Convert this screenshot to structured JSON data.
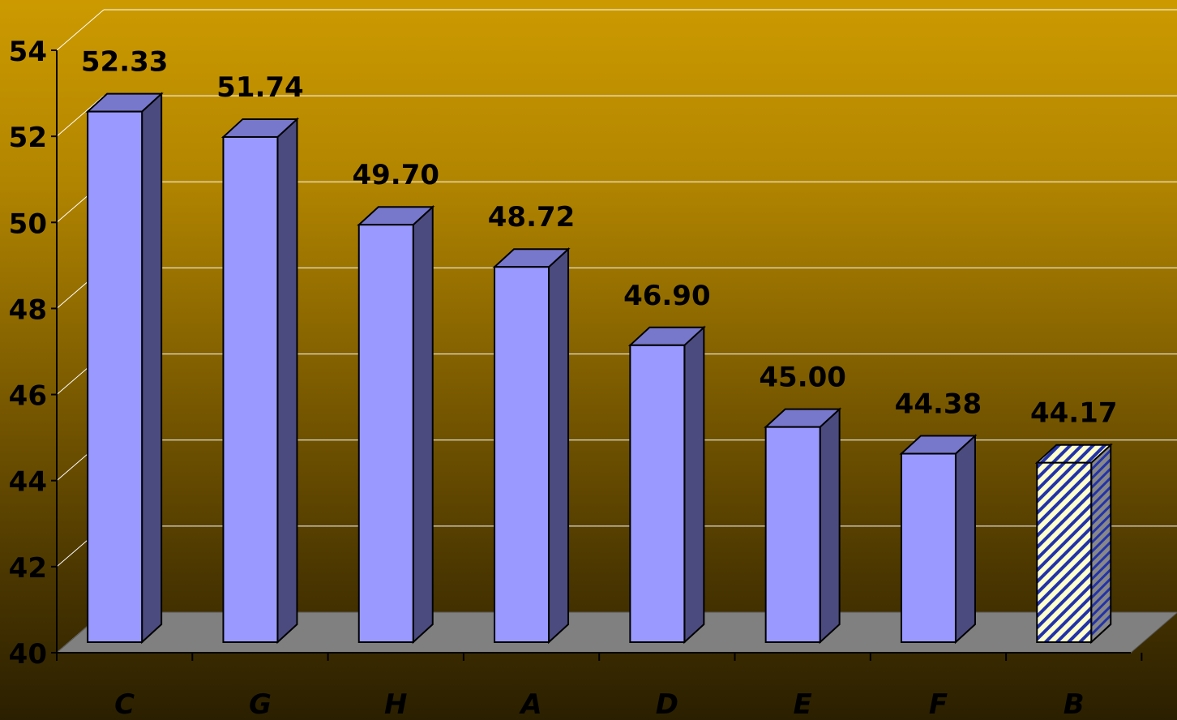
{
  "chart_data": {
    "type": "bar",
    "categories": [
      "C",
      "G",
      "H",
      "A",
      "D",
      "E",
      "F",
      "B"
    ],
    "values": [
      52.33,
      51.74,
      49.7,
      48.72,
      46.9,
      45.0,
      44.38,
      44.17
    ],
    "value_labels": [
      "52.33",
      "51.74",
      "49.70",
      "48.72",
      "46.90",
      "45.00",
      "44.38",
      "44.17"
    ],
    "highlighted_category": "B",
    "title": "",
    "xlabel": "",
    "ylabel": "",
    "ylim": [
      40,
      54
    ],
    "yticks": [
      "40",
      "42",
      "44",
      "46",
      "48",
      "50",
      "52",
      "54"
    ],
    "style": "3d-column",
    "grid": true,
    "colors": {
      "bar_front": "#9999ff",
      "bar_top": "#7777cc",
      "bar_side": "#4b4b80",
      "highlight_stripe_a": "#ffffcc",
      "highlight_stripe_b": "#2233aa",
      "floor": "#808080",
      "gridline": "#ffffff"
    }
  }
}
